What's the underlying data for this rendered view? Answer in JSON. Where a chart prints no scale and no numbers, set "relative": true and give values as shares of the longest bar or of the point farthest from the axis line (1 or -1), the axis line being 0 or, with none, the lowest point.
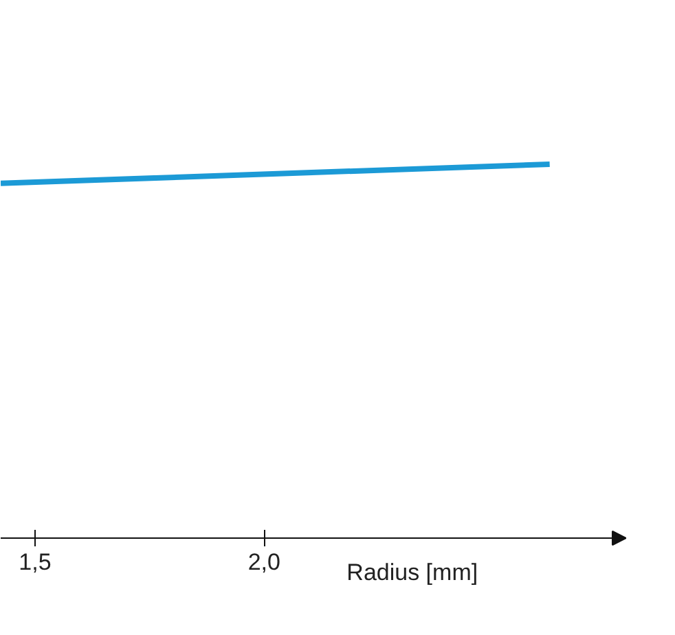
{
  "chart_data": {
    "type": "line",
    "relative": true,
    "xlabel": "Radius [mm]",
    "xlim": [
      1.425,
      2.79
    ],
    "xticks": [
      {
        "value": 1.5,
        "label": "1,5"
      },
      {
        "value": 2.0,
        "label": "2,0"
      }
    ],
    "x": [
      1.425,
      2.623
    ],
    "series": [
      {
        "color": "#1c9ad6",
        "values": [
          0.949,
          1.0
        ]
      }
    ],
    "grid": false,
    "tick_labels": "x",
    "marker": "none",
    "line_style": "solid"
  }
}
